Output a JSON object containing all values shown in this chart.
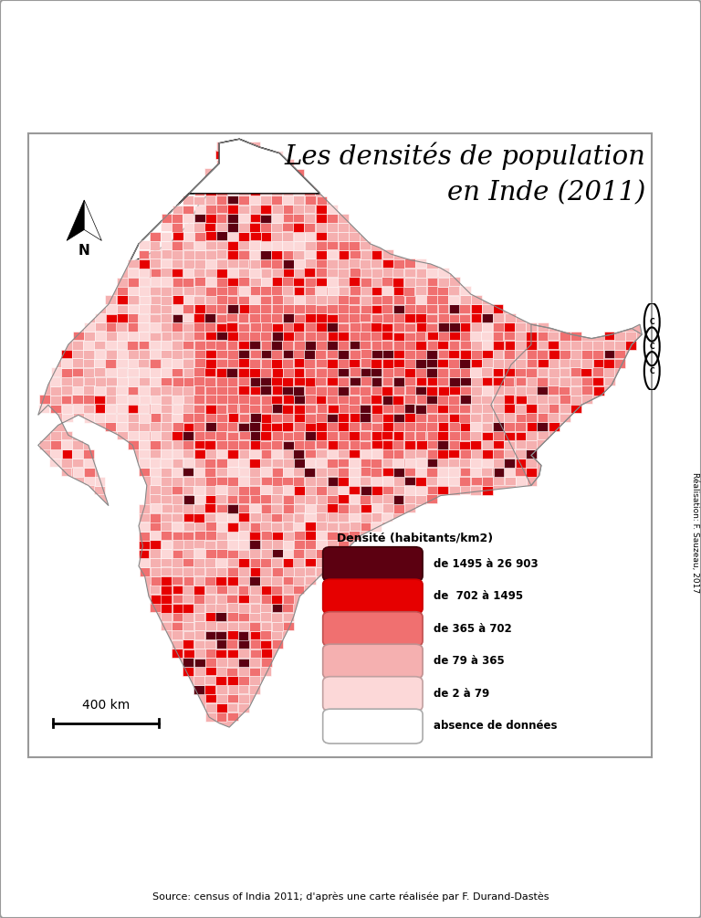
{
  "title_line1": "Les densités de population",
  "title_line2": "en Inde (2011)",
  "source_text": "Source: census of India 2011; d'après une carte réalisée par F. Durand-Dastès",
  "realisation_text": "Réalisation: F. Sauzeau, 2017",
  "legend_title": "Densité (habitants/km2)",
  "legend_labels": [
    "de 1495 à 26 903",
    "de  702 à 1495",
    "de 365 à 702",
    "de 79 à 365",
    "de 2 à 79",
    "absence de données"
  ],
  "legend_colors": [
    "#5c0011",
    "#e60000",
    "#f07070",
    "#f5b0b0",
    "#fcd8d8",
    "#ffffff"
  ],
  "legend_edge_colors": [
    "#3a0008",
    "#cc0000",
    "#c05050",
    "#c09090",
    "#c0a0a0",
    "#aaaaaa"
  ],
  "background_color": "#ffffff",
  "scale_bar_label": "400 km",
  "title_fontsize": 21,
  "source_fontsize": 8,
  "legend_title_fontsize": 9,
  "legend_label_fontsize": 8.5,
  "north_label": "N",
  "map_xlim": [
    67.0,
    98.0
  ],
  "map_ylim": [
    6.5,
    37.5
  ],
  "fig_border_color": "#999999",
  "fig_border_lw": 1.5,
  "cc_box_color": "#e0e0e0"
}
